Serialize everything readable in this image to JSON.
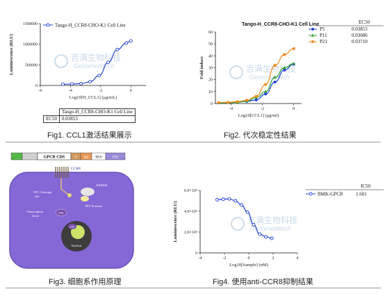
{
  "fig1": {
    "caption": "Fig1. CCL1激活结果展示",
    "table": {
      "header": "Tango-H_CCR8-CHO-K1 Cell Line",
      "row_label": "EC50",
      "row_value": "0.03853"
    }
  },
  "fig2": {
    "caption": "Fig2. 代次稳定性结果",
    "ec50_header": "EC50",
    "ec50_values": [
      "0.03853",
      "0.03086",
      "0.03710"
    ]
  },
  "fig3": {
    "caption": "Fig3. 细胞系作用原理",
    "construct_labels": [
      "GPCR CDS",
      "V",
      "tail",
      "TEV",
      "tTA"
    ],
    "cell_labels": {
      "ccr8": "CCR8",
      "tev_cleavage": "TEV Cleavage\nsite",
      "arrestin": "Arrestin",
      "tev_protease": "TEV Protease",
      "tf": "Transcription\nfactor",
      "tta1": "tTA",
      "tta2": "tTA",
      "nucleus": "Nucleus"
    }
  },
  "fig4": {
    "caption": "Fig4. 使用anti-CCR8抑制结果",
    "ic50_header": "IC50",
    "ic50_value": "1.601"
  },
  "watermark": {
    "cn": "吉满生物科技",
    "en": "Genomeditech"
  },
  "colors": {
    "blue": "#1f3fd6",
    "green": "#2fa02f",
    "orange": "#f08a1c",
    "cell_body": "#8468d6",
    "cell_edge": "#6a50b8",
    "nucleus": "#3d3d3d",
    "nucleus_inner": "#cfe36a"
  },
  "chart_data": [
    {
      "type": "line",
      "title": "Tango-H_CCR8-CHO-K1 Cell Line",
      "xlabel": "Log10[H_CCL1] (μg/mL)",
      "ylabel": "Luminescence (RLU)",
      "xlim": [
        -6,
        1
      ],
      "ylim": [
        0,
        1500000
      ],
      "xticks": [
        -6,
        -4,
        -2,
        0
      ],
      "yticks": [
        0,
        500000,
        1000000,
        1500000
      ],
      "ytick_labels": [
        "0",
        "500000",
        "1000000",
        "1500000"
      ],
      "series": [
        {
          "name": "Tango-H_CCR8-CHO-K1 Cell Line",
          "x": [
            -4.5,
            -3.9,
            -3.3,
            -2.7,
            -2.1,
            -1.5,
            -0.9,
            -0.3,
            0.0
          ],
          "y": [
            30000,
            35000,
            45000,
            90000,
            240000,
            560000,
            870000,
            1030000,
            1080000
          ]
        }
      ]
    },
    {
      "type": "line",
      "title": "Tango-H_CCR8-CHO-K1 Cell Line",
      "xlabel": "Log10[CCL1] (μg/ml)",
      "ylabel": "Fold induce",
      "xlim": [
        -5,
        0.5
      ],
      "ylim": [
        0,
        60
      ],
      "xticks": [
        -4,
        -2,
        0
      ],
      "yticks": [
        0,
        10,
        20,
        30,
        40,
        50,
        60
      ],
      "series": [
        {
          "name": "P5",
          "x": [
            -4.8,
            -4.2,
            -3.6,
            -3.0,
            -2.4,
            -1.8,
            -1.2,
            -0.6,
            0.0
          ],
          "y": [
            0.5,
            0.8,
            1.2,
            1.8,
            3.0,
            8.0,
            18.0,
            28.0,
            33.0
          ]
        },
        {
          "name": "P11",
          "x": [
            -4.8,
            -4.2,
            -3.6,
            -3.0,
            -2.4,
            -1.8,
            -1.2,
            -0.6,
            0.0
          ],
          "y": [
            0.5,
            0.6,
            1.0,
            2.0,
            5.0,
            10.0,
            22.0,
            30.0,
            33.5
          ]
        },
        {
          "name": "P21",
          "x": [
            -4.8,
            -4.2,
            -3.6,
            -3.0,
            -2.4,
            -1.8,
            -1.2,
            -0.6,
            0.0
          ],
          "y": [
            0.8,
            1.0,
            1.6,
            2.8,
            6.0,
            16.0,
            32.0,
            41.0,
            46.0
          ]
        }
      ]
    },
    {
      "type": "line",
      "xlabel": "Log10[Sample] (nM)",
      "ylabel": "Luminescence (RLU)",
      "xlim": [
        -4,
        4
      ],
      "ylim": [
        0,
        600000
      ],
      "xticks": [
        -4,
        -2,
        0,
        2,
        4
      ],
      "yticks": [
        0,
        200000,
        400000,
        600000
      ],
      "ytick_labels": [
        "0",
        "2.0×10⁵",
        "4.0×10⁵",
        "6.0×10⁵"
      ],
      "series": [
        {
          "name": "BMK-GPCR",
          "x": [
            -2.6,
            -2.1,
            -1.6,
            -1.1,
            -0.6,
            -0.1,
            0.4,
            0.9,
            1.4,
            1.9
          ],
          "y": [
            510000,
            515000,
            518000,
            500000,
            460000,
            390000,
            270000,
            180000,
            155000,
            140000
          ]
        }
      ]
    }
  ]
}
